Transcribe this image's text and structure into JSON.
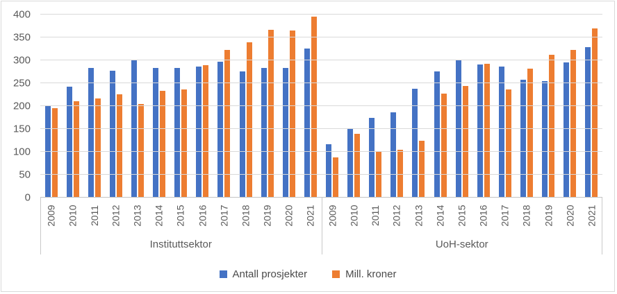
{
  "chart_data": {
    "type": "bar",
    "title": "",
    "grid": true,
    "legend_position": "bottom",
    "y_axis": {
      "min": 0,
      "max": 400,
      "step": 50,
      "ticks": [
        400,
        350,
        300,
        250,
        200,
        150,
        100,
        50,
        0
      ]
    },
    "series": [
      {
        "name": "Antall prosjekter",
        "slug": "antall-prosjekter",
        "color": "#4472C4"
      },
      {
        "name": "Mill. kroner",
        "slug": "mill-kroner",
        "color": "#ED7D31"
      }
    ],
    "groups": [
      {
        "label": "Instituttsektor",
        "slug": "instituttsektor",
        "categories": [
          "2009",
          "2010",
          "2011",
          "2012",
          "2013",
          "2014",
          "2015",
          "2016",
          "2017",
          "2018",
          "2019",
          "2020",
          "2021"
        ],
        "values": {
          "Antall prosjekter": [
            200,
            242,
            284,
            277,
            301,
            283,
            283,
            286,
            297,
            276,
            283,
            284,
            326
          ],
          "Mill. kroner": [
            196,
            211,
            216,
            226,
            204,
            233,
            237,
            290,
            323,
            340,
            366,
            365,
            396
          ]
        }
      },
      {
        "label": "UoH-sektor",
        "slug": "uoh-sektor",
        "categories": [
          "2009",
          "2010",
          "2011",
          "2012",
          "2013",
          "2014",
          "2015",
          "2016",
          "2017",
          "2018",
          "2019",
          "2020",
          "2021"
        ],
        "values": {
          "Antall prosjekter": [
            117,
            152,
            174,
            187,
            238,
            276,
            302,
            291,
            287,
            258,
            254,
            295,
            329
          ],
          "Mill. kroner": [
            88,
            140,
            101,
            105,
            125,
            227,
            244,
            292,
            236,
            282,
            312,
            323,
            369
          ]
        }
      }
    ],
    "legend": [
      {
        "label": "Antall prosjekter",
        "color": "#4472C4",
        "slug": "antall-prosjekter"
      },
      {
        "label": "Mill. kroner",
        "color": "#ED7D31",
        "slug": "mill-kroner"
      }
    ]
  }
}
